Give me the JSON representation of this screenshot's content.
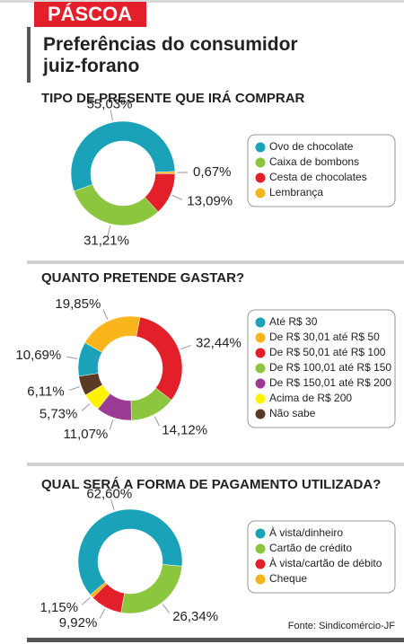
{
  "header": {
    "tag": "PÁSCOA",
    "title": "Preferências do consumidor juiz-forano"
  },
  "source": "Fonte: Sindicomércio-JF",
  "chart_data": [
    {
      "type": "pie",
      "title": "TIPO DE PRESENTE QUE IRÁ COMPRAR",
      "categories": [
        "Ovo de chocolate",
        "Caixa de bombons",
        "Cesta de chocolates",
        "Lembrança"
      ],
      "values": [
        55.03,
        31.21,
        13.09,
        0.67
      ],
      "value_labels": [
        "55,03%",
        "31,21%",
        "13,09%",
        "0,67%"
      ],
      "colors": [
        "#1aa3b8",
        "#8cc63f",
        "#e3202a",
        "#f5b41a"
      ]
    },
    {
      "type": "pie",
      "title": "QUANTO PRETENDE GASTAR?",
      "categories": [
        "Até R$ 30",
        "De R$ 30,01 até R$ 50",
        "De R$ 50,01 até R$ 100",
        "De R$ 100,01 até R$ 150",
        "De R$ 150,01 até R$ 200",
        "Acima de R$ 200",
        "Não sabe"
      ],
      "values": [
        10.69,
        19.85,
        32.44,
        14.12,
        11.07,
        5.73,
        6.11
      ],
      "value_labels": [
        "10,69%",
        "19,85%",
        "32,44%",
        "14,12%",
        "11,07%",
        "5,73%",
        "6,11%"
      ],
      "colors": [
        "#1aa3b8",
        "#f9b51b",
        "#e3202a",
        "#8cc63f",
        "#9b3b96",
        "#fff200",
        "#5a3a22"
      ]
    },
    {
      "type": "pie",
      "title": "QUAL SERÁ A FORMA DE PAGAMENTO UTILIZADA?",
      "categories": [
        "À vista/dinheiro",
        "Cartão de crédito",
        "À vista/cartão de débito",
        "Cheque"
      ],
      "values": [
        62.6,
        26.34,
        9.92,
        1.15
      ],
      "value_labels": [
        "62,60%",
        "26,34%",
        "9,92%",
        "1,15%"
      ],
      "colors": [
        "#1aa3b8",
        "#8cc63f",
        "#e3202a",
        "#f5b41a"
      ]
    }
  ]
}
